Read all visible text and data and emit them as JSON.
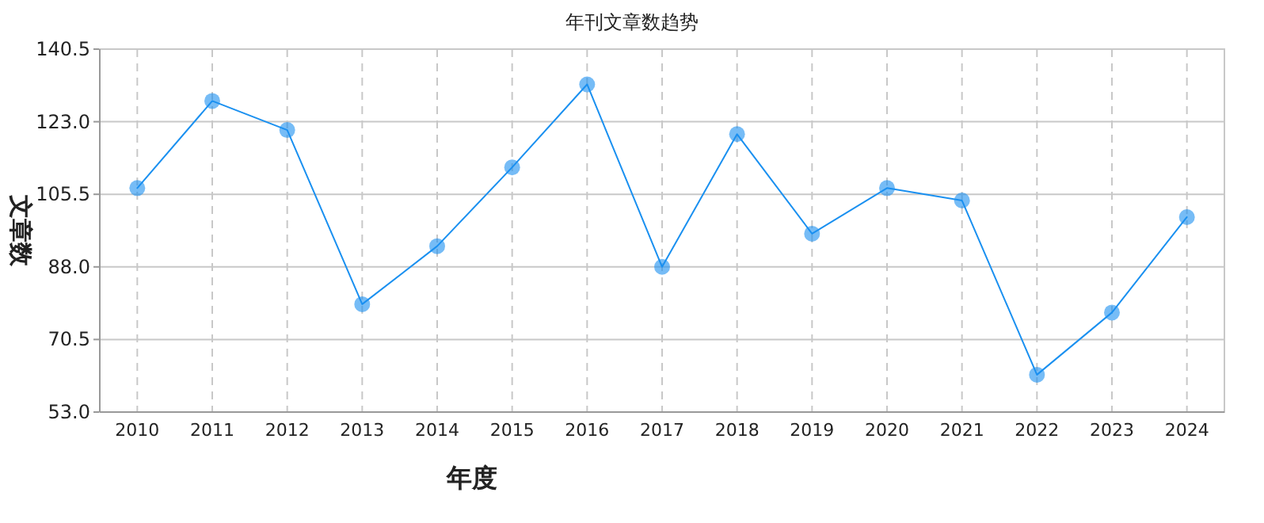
{
  "chart_data": {
    "type": "line",
    "title": "年刊文章数趋势",
    "xlabel": "年度",
    "ylabel": "文章数",
    "categories": [
      "2010",
      "2011",
      "2012",
      "2013",
      "2014",
      "2015",
      "2016",
      "2017",
      "2018",
      "2019",
      "2020",
      "2021",
      "2022",
      "2023",
      "2024"
    ],
    "series": [
      {
        "color": "#1a90f0",
        "values": [
          107,
          128,
          121,
          79,
          93,
          112,
          132,
          88,
          120,
          96,
          107,
          104,
          62,
          77,
          100
        ]
      }
    ],
    "ylim": [
      53,
      140.5
    ],
    "yticks": [
      {
        "value": 53,
        "label": "53.0"
      },
      {
        "value": 70.5,
        "label": "70.5"
      },
      {
        "value": 88,
        "label": "88.0"
      },
      {
        "value": 105.5,
        "label": "105.5"
      },
      {
        "value": 123,
        "label": "123.0"
      },
      {
        "value": 140.5,
        "label": "140.5"
      }
    ],
    "grid": true,
    "marker": "circle",
    "line_style": "solid"
  }
}
